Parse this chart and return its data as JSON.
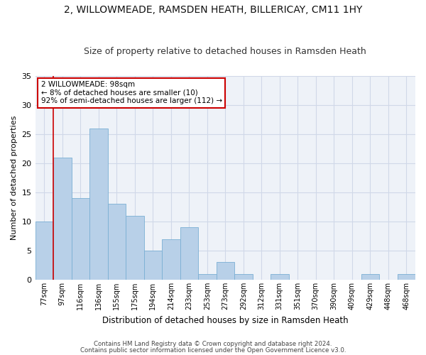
{
  "title": "2, WILLOWMEADE, RAMSDEN HEATH, BILLERICAY, CM11 1HY",
  "subtitle": "Size of property relative to detached houses in Ramsden Heath",
  "xlabel": "Distribution of detached houses by size in Ramsden Heath",
  "ylabel": "Number of detached properties",
  "categories": [
    "77sqm",
    "97sqm",
    "116sqm",
    "136sqm",
    "155sqm",
    "175sqm",
    "194sqm",
    "214sqm",
    "233sqm",
    "253sqm",
    "273sqm",
    "292sqm",
    "312sqm",
    "331sqm",
    "351sqm",
    "370sqm",
    "390sqm",
    "409sqm",
    "429sqm",
    "448sqm",
    "468sqm"
  ],
  "values": [
    10,
    21,
    14,
    26,
    13,
    11,
    5,
    7,
    9,
    1,
    3,
    1,
    0,
    1,
    0,
    0,
    0,
    0,
    1,
    0,
    1
  ],
  "bar_color": "#b8d0e8",
  "bar_edge_color": "#7aafd4",
  "grid_color": "#d0d8e8",
  "background_color": "#eef2f8",
  "marker_color": "#cc0000",
  "annotation_title": "2 WILLOWMEADE: 98sqm",
  "annotation_line1": "← 8% of detached houses are smaller (10)",
  "annotation_line2": "92% of semi-detached houses are larger (112) →",
  "annotation_box_color": "#ffffff",
  "annotation_box_edge": "#cc0000",
  "ylim": [
    0,
    35
  ],
  "yticks": [
    0,
    5,
    10,
    15,
    20,
    25,
    30,
    35
  ],
  "footer1": "Contains HM Land Registry data © Crown copyright and database right 2024.",
  "footer2": "Contains public sector information licensed under the Open Government Licence v3.0."
}
